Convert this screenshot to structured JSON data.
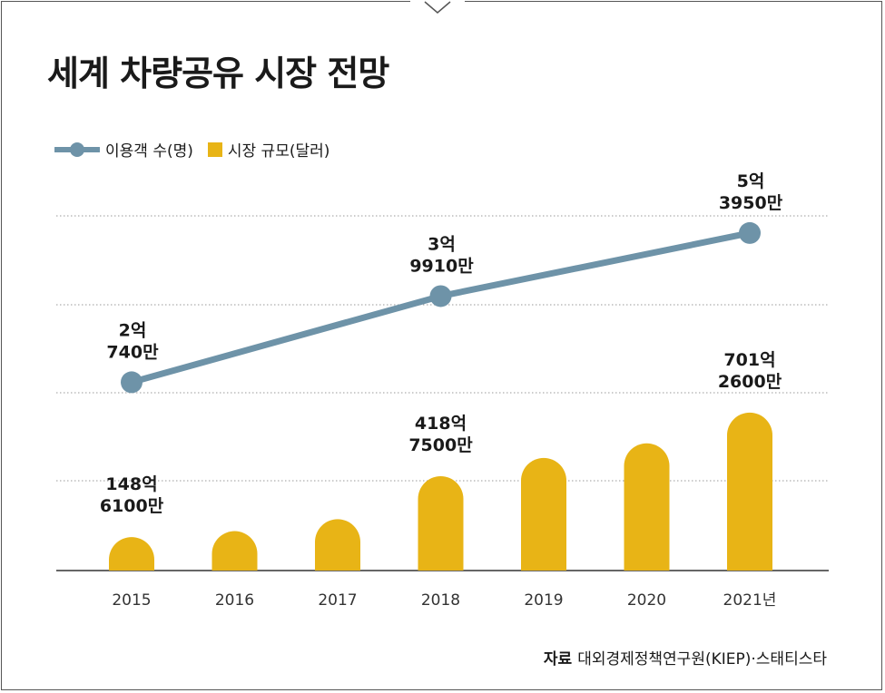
{
  "title": "세계 차량공유 시장 전망",
  "legend": {
    "line_label": "이용객 수(명)",
    "bar_label": "시장 규모(달러)"
  },
  "source": {
    "label": "자료",
    "text": "대외경제정책연구원(KIEP)·스태티스타"
  },
  "colors": {
    "line": "#6e93a8",
    "bar": "#e8b416",
    "grid": "#9a9a9a",
    "text": "#1a1a1a"
  },
  "chart_data": {
    "type": "bar+line",
    "categories": [
      "2015",
      "2016",
      "2017",
      "2018",
      "2019",
      "2020",
      "2021년"
    ],
    "series": [
      {
        "name": "시장 규모(달러)",
        "kind": "bar",
        "unit": "억 달러",
        "values": [
          148.61,
          175,
          228,
          418.75,
          500,
          565,
          701.26
        ],
        "labels": [
          {
            "index": 0,
            "lines": [
              "148억",
              "6100만"
            ]
          },
          {
            "index": 3,
            "lines": [
              "418억",
              "7500만"
            ]
          },
          {
            "index": 6,
            "lines": [
              "701억",
              "2600만"
            ]
          }
        ]
      },
      {
        "name": "이용객 수(명)",
        "kind": "line",
        "unit": "명",
        "points": [
          {
            "index": 0,
            "value": 207400000
          },
          {
            "index": 3,
            "value": 399100000
          },
          {
            "index": 6,
            "value": 539500000
          }
        ],
        "labels": [
          {
            "index": 0,
            "lines": [
              "2억",
              "740만"
            ]
          },
          {
            "index": 3,
            "lines": [
              "3억",
              "9910만"
            ]
          },
          {
            "index": 6,
            "lines": [
              "5억",
              "3950만"
            ]
          }
        ]
      }
    ],
    "grid": true,
    "legend_position": "top-left"
  }
}
